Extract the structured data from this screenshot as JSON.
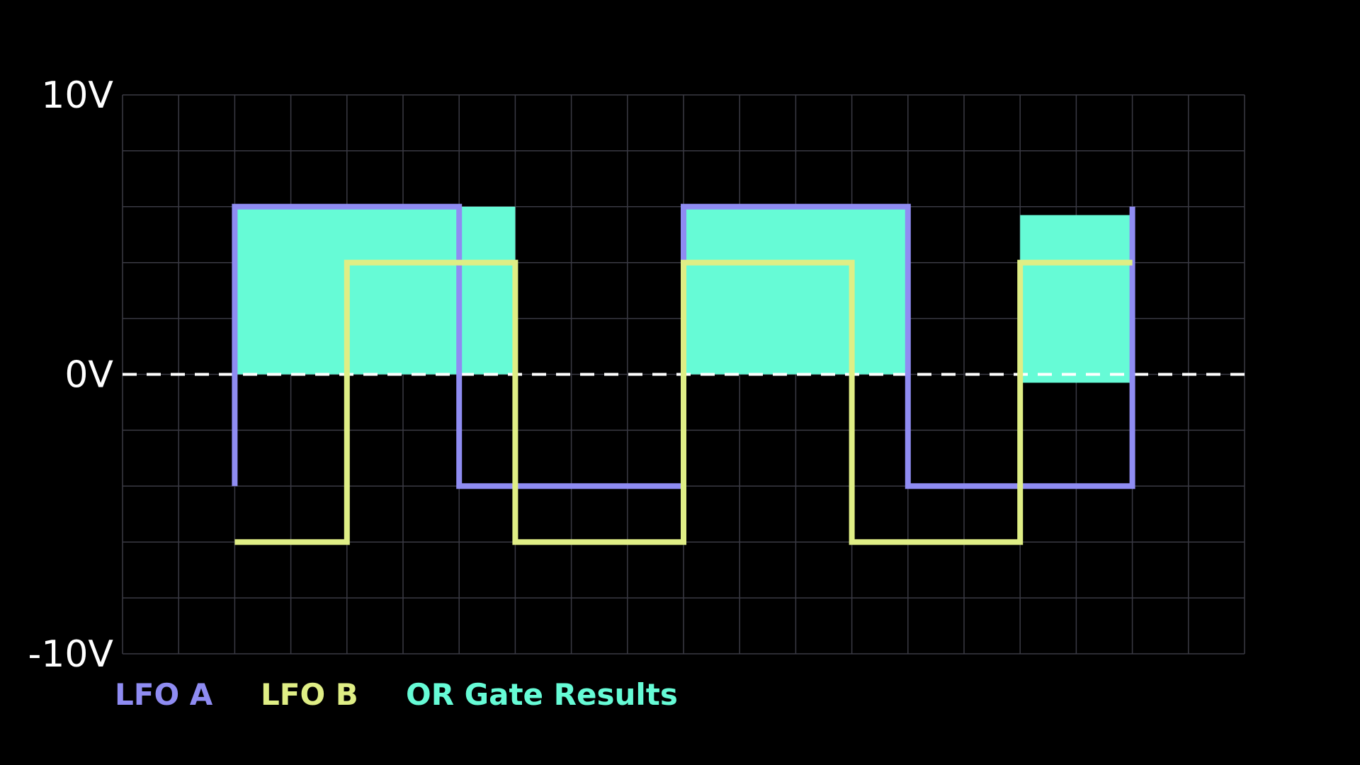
{
  "chart_data": {
    "type": "line",
    "title": "",
    "xlabel": "",
    "ylabel": "",
    "ylim": [
      -10,
      10
    ],
    "xlim": [
      0,
      20
    ],
    "grid": true,
    "y_tick_labels": [
      {
        "value": 10,
        "label": "10V"
      },
      {
        "value": 0,
        "label": "0V"
      },
      {
        "value": -10,
        "label": "-10V"
      }
    ],
    "zero_line": "dashed",
    "legend_placement": "bottom-left",
    "series": [
      {
        "name": "LFO A",
        "color": "#8f8cf2",
        "points": [
          [
            2,
            -4
          ],
          [
            2,
            6
          ],
          [
            6,
            6
          ],
          [
            6,
            -4
          ],
          [
            10,
            -4
          ],
          [
            10,
            6
          ],
          [
            14,
            6
          ],
          [
            14,
            -4
          ],
          [
            18,
            -4
          ],
          [
            18,
            6
          ]
        ]
      },
      {
        "name": "LFO B",
        "color": "#dfee85",
        "points": [
          [
            2,
            -6
          ],
          [
            4,
            -6
          ],
          [
            4,
            4
          ],
          [
            7,
            4
          ],
          [
            7,
            -6
          ],
          [
            10,
            -6
          ],
          [
            10,
            4
          ],
          [
            13,
            4
          ],
          [
            13,
            -6
          ],
          [
            16,
            -6
          ],
          [
            16,
            4
          ],
          [
            18,
            4
          ]
        ]
      }
    ],
    "fill_series": {
      "name": "OR Gate Results",
      "color": "#66fbd6",
      "regions": [
        {
          "x0": 2,
          "x1": 7,
          "y0": 0,
          "y1": 6
        },
        {
          "x0": 10,
          "x1": 14,
          "y0": 0,
          "y1": 6
        },
        {
          "x0": 16,
          "x1": 18,
          "y0": -0.3,
          "y1": 5.7
        }
      ]
    }
  },
  "legend": [
    {
      "label": "LFO A",
      "color": "#8f8cf2"
    },
    {
      "label": "LFO B",
      "color": "#dfee85"
    },
    {
      "label": "OR Gate Results",
      "color": "#66fbd6"
    }
  ]
}
